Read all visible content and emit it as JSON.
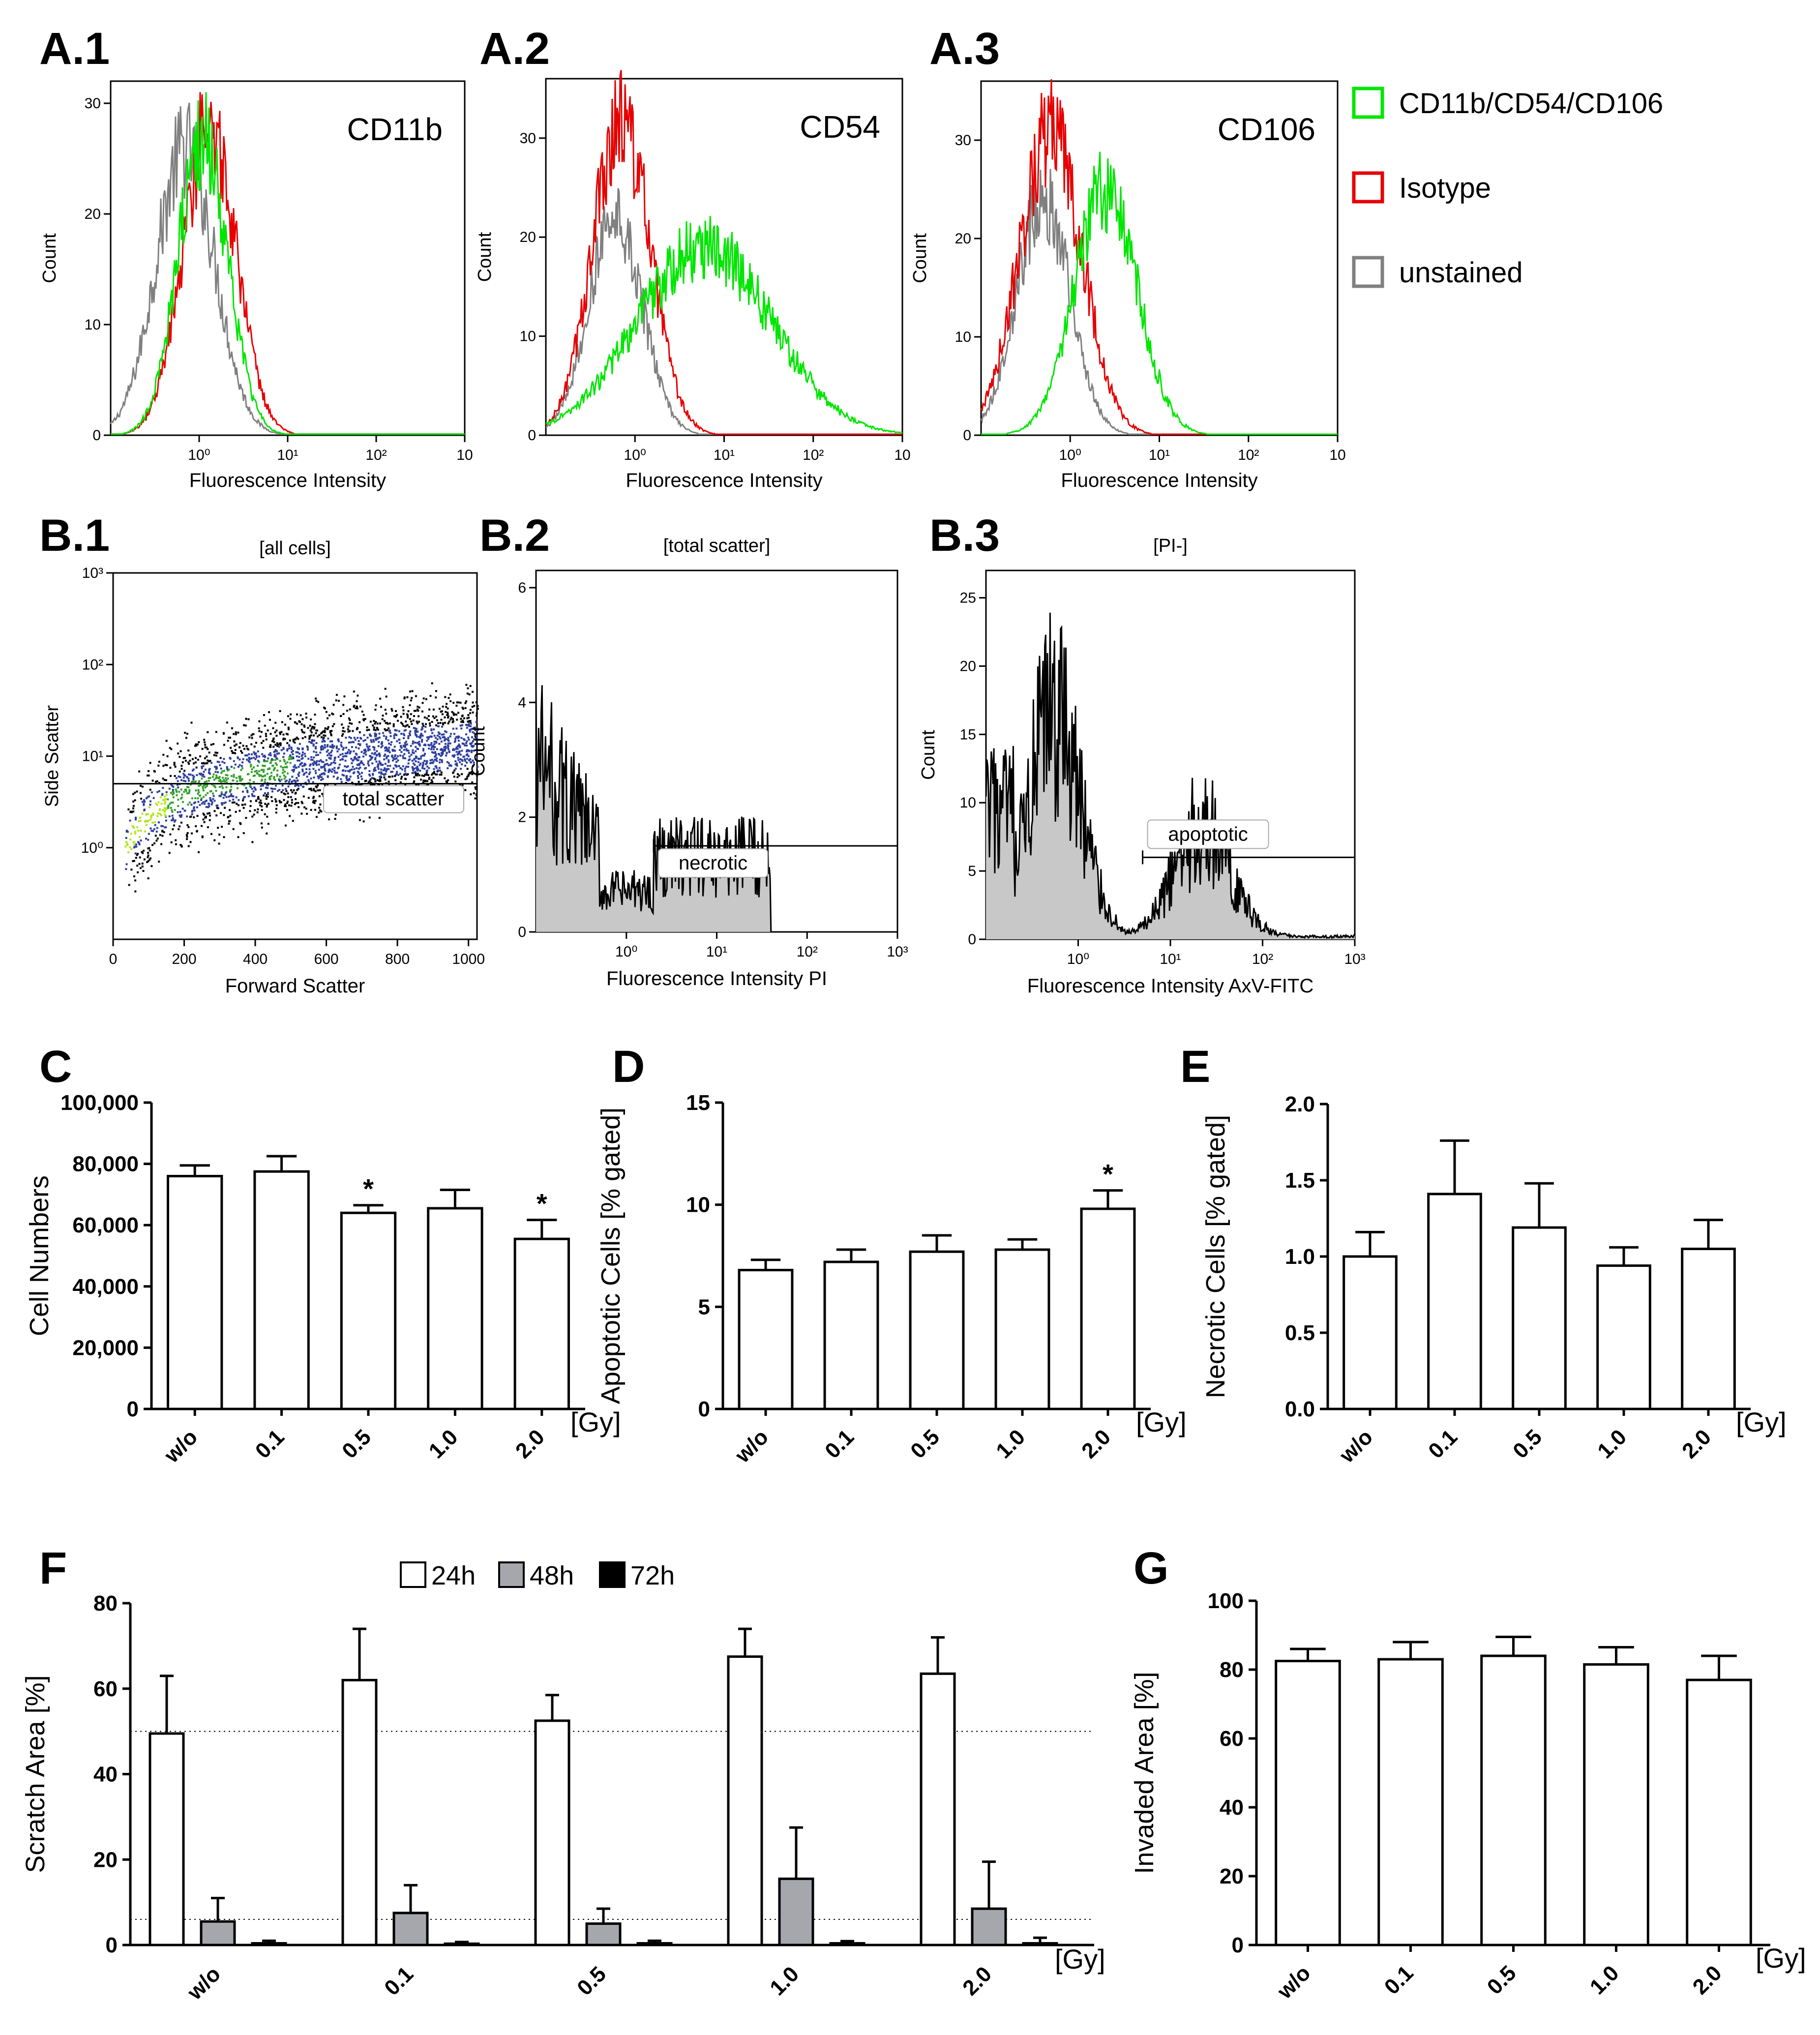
{
  "panel_labels": {
    "A1": "A.1",
    "A2": "A.2",
    "A3": "A.3",
    "B1": "B.1",
    "B2": "B.2",
    "B3": "B.3",
    "C": "C",
    "D": "D",
    "E": "E",
    "F": "F",
    "G": "G"
  },
  "legend_A": [
    {
      "label": "CD11b/CD54/CD106",
      "color": "#00e600"
    },
    {
      "label": "Isotype",
      "color": "#e60000"
    },
    {
      "label": "unstained",
      "color": "#808080"
    }
  ],
  "chart_data": [
    {
      "id": "A1",
      "type": "line",
      "title": "CD11b",
      "xlabel": "Fluorescence Intensity",
      "ylabel": "Count",
      "xscale": "log",
      "xlim": [
        0.1,
        1000
      ],
      "ylim": [
        0,
        32
      ],
      "xticks": [
        {
          "v": 1,
          "label": "10⁰"
        },
        {
          "v": 10,
          "label": "10¹"
        },
        {
          "v": 100,
          "label": "10²"
        },
        {
          "v": 1000,
          "label": "10"
        }
      ],
      "yticks": [
        0,
        10,
        20,
        30
      ],
      "series": [
        {
          "name": "unstained",
          "color": "#808080",
          "peak_x": 0.7,
          "peak_y": 26,
          "log_sd": 0.33
        },
        {
          "name": "Isotype",
          "color": "#e60000",
          "peak_x": 1.3,
          "peak_y": 28,
          "log_sd": 0.3
        },
        {
          "name": "CD11b/CD54/CD106",
          "color": "#00e600",
          "peak_x": 1.1,
          "peak_y": 27,
          "log_sd": 0.28
        }
      ]
    },
    {
      "id": "A2",
      "type": "line",
      "title": "CD54",
      "xlabel": "Fluorescence Intensity",
      "ylabel": "Count",
      "xscale": "log",
      "xlim": [
        0.1,
        1000
      ],
      "ylim": [
        0,
        36
      ],
      "xticks": [
        {
          "v": 1,
          "label": "10⁰"
        },
        {
          "v": 10,
          "label": "10¹"
        },
        {
          "v": 100,
          "label": "10²"
        },
        {
          "v": 1000,
          "label": "10"
        }
      ],
      "yticks": [
        0,
        10,
        20,
        30
      ],
      "series": [
        {
          "name": "unstained",
          "color": "#808080",
          "peak_x": 0.6,
          "peak_y": 22,
          "log_sd": 0.3
        },
        {
          "name": "Isotype",
          "color": "#e60000",
          "peak_x": 0.7,
          "peak_y": 32,
          "log_sd": 0.32
        },
        {
          "name": "CD11b/CD54/CD106",
          "color": "#00e600",
          "peak_x": 6,
          "peak_y": 19,
          "log_sd": 0.75
        }
      ]
    },
    {
      "id": "A3",
      "type": "line",
      "title": "CD106",
      "xlabel": "Fluorescence Intensity",
      "ylabel": "Count",
      "xscale": "log",
      "xlim": [
        0.1,
        1000
      ],
      "ylim": [
        0,
        36
      ],
      "xticks": [
        {
          "v": 1,
          "label": "10⁰"
        },
        {
          "v": 10,
          "label": "10¹"
        },
        {
          "v": 100,
          "label": "10²"
        },
        {
          "v": 1000,
          "label": "10"
        }
      ],
      "yticks": [
        0,
        10,
        20,
        30
      ],
      "series": [
        {
          "name": "unstained",
          "color": "#808080",
          "peak_x": 0.5,
          "peak_y": 24,
          "log_sd": 0.3
        },
        {
          "name": "Isotype",
          "color": "#e60000",
          "peak_x": 0.6,
          "peak_y": 31,
          "log_sd": 0.35
        },
        {
          "name": "CD11b/CD54/CD106",
          "color": "#00e600",
          "peak_x": 2.5,
          "peak_y": 25,
          "log_sd": 0.35
        }
      ]
    },
    {
      "id": "B1",
      "type": "scatter",
      "title": "[all cells]",
      "xlabel": "Forward Scatter",
      "ylabel": "Side Scatter",
      "xlim": [
        0,
        1024
      ],
      "yscale": "log",
      "ylim": [
        0.1,
        1000
      ],
      "xticks": [
        0,
        200,
        400,
        600,
        800,
        1000
      ],
      "yticks": [
        {
          "v": 1,
          "label": "10⁰"
        },
        {
          "v": 10,
          "label": "10¹"
        },
        {
          "v": 100,
          "label": "10²"
        },
        {
          "v": 1000,
          "label": "10³"
        }
      ],
      "gate": {
        "label": "total scatter",
        "y": 5
      }
    },
    {
      "id": "B2",
      "type": "area",
      "title": "[total scatter]",
      "xlabel": "Fluorescence Intensity PI",
      "ylabel": "Count",
      "xscale": "log",
      "xlim": [
        0.1,
        1000
      ],
      "ylim": [
        0,
        6.3
      ],
      "xticks": [
        {
          "v": 1,
          "label": "10⁰"
        },
        {
          "v": 10,
          "label": "10¹"
        },
        {
          "v": 100,
          "label": "10²"
        },
        {
          "v": 1000,
          "label": "10³"
        }
      ],
      "yticks": [
        0,
        2,
        4,
        6
      ],
      "gate": {
        "label": "necrotic",
        "x_from": 2,
        "x_to": 1000,
        "y": 1.5
      }
    },
    {
      "id": "B3",
      "type": "area",
      "title": "[PI-]",
      "xlabel": "Fluorescence Intensity AxV-FITC",
      "ylabel": "Count",
      "xscale": "log",
      "xlim": [
        0.1,
        1000
      ],
      "ylim": [
        0,
        27
      ],
      "xticks": [
        {
          "v": 1,
          "label": "10⁰"
        },
        {
          "v": 10,
          "label": "10¹"
        },
        {
          "v": 100,
          "label": "10²"
        },
        {
          "v": 1000,
          "label": "10³"
        }
      ],
      "yticks": [
        0,
        5,
        10,
        15,
        20,
        25
      ],
      "gate": {
        "label": "apoptotic",
        "x_from": 5,
        "x_to": 1000,
        "y": 6
      }
    },
    {
      "id": "C",
      "type": "bar",
      "ylabel": "Cell Numbers",
      "unit_label": "[Gy]",
      "categories": [
        "w/o",
        "0.1",
        "0.5",
        "1.0",
        "2.0"
      ],
      "values": [
        76000,
        77500,
        64000,
        65500,
        55500
      ],
      "errors": [
        3500,
        5000,
        2500,
        6000,
        6200
      ],
      "significance": [
        "",
        "",
        "*",
        "",
        "*"
      ],
      "ylim": [
        0,
        100000
      ],
      "yticks": [
        {
          "v": 0,
          "label": "0"
        },
        {
          "v": 20000,
          "label": "20,000"
        },
        {
          "v": 40000,
          "label": "40,000"
        },
        {
          "v": 60000,
          "label": "60,000"
        },
        {
          "v": 80000,
          "label": "80,000"
        },
        {
          "v": 100000,
          "label": "100,000"
        }
      ]
    },
    {
      "id": "D",
      "type": "bar",
      "ylabel": "Apoptotic Cells [% gated]",
      "unit_label": "[Gy]",
      "categories": [
        "w/o",
        "0.1",
        "0.5",
        "1.0",
        "2.0"
      ],
      "values": [
        6.8,
        7.2,
        7.7,
        7.8,
        9.8
      ],
      "errors": [
        0.5,
        0.6,
        0.8,
        0.5,
        0.9
      ],
      "significance": [
        "",
        "",
        "",
        "",
        "*"
      ],
      "ylim": [
        0,
        15
      ],
      "yticks": [
        {
          "v": 0,
          "label": "0"
        },
        {
          "v": 5,
          "label": "5"
        },
        {
          "v": 10,
          "label": "10"
        },
        {
          "v": 15,
          "label": "15"
        }
      ]
    },
    {
      "id": "E",
      "type": "bar",
      "ylabel": "Necrotic Cells [% gated]",
      "unit_label": "[Gy]",
      "categories": [
        "w/o",
        "0.1",
        "0.5",
        "1.0",
        "2.0"
      ],
      "values": [
        1.0,
        1.41,
        1.19,
        0.94,
        1.05
      ],
      "errors": [
        0.16,
        0.35,
        0.29,
        0.12,
        0.19
      ],
      "significance": [
        "",
        "",
        "",
        "",
        ""
      ],
      "ylim": [
        0,
        2.0
      ],
      "yticks": [
        {
          "v": 0,
          "label": "0.0"
        },
        {
          "v": 0.5,
          "label": "0.5"
        },
        {
          "v": 1.0,
          "label": "1.0"
        },
        {
          "v": 1.5,
          "label": "1.5"
        },
        {
          "v": 2.0,
          "label": "2.0"
        }
      ]
    },
    {
      "id": "F",
      "type": "bar",
      "ylabel": "Scratch Area [%]",
      "unit_label": "[Gy]",
      "categories": [
        "w/o",
        "0.1",
        "0.5",
        "1.0",
        "2.0"
      ],
      "series": [
        {
          "name": "24h",
          "color": "#ffffff",
          "values": [
            49.5,
            62,
            52.5,
            67.5,
            63.5
          ],
          "errors": [
            13.5,
            12,
            6,
            6.5,
            8.5
          ]
        },
        {
          "name": "48h",
          "color": "#a6a6ad",
          "values": [
            5.5,
            7.5,
            5,
            15.5,
            8.5
          ],
          "errors": [
            5.5,
            6.5,
            3.5,
            12,
            11
          ]
        },
        {
          "name": "72h",
          "color": "#000000",
          "values": [
            0.4,
            0.3,
            0.4,
            0.4,
            0.4
          ],
          "errors": [
            0.6,
            0.4,
            0.6,
            0.5,
            1.3
          ]
        }
      ],
      "ylim": [
        0,
        80
      ],
      "yticks": [
        {
          "v": 0,
          "label": "0"
        },
        {
          "v": 20,
          "label": "20"
        },
        {
          "v": 40,
          "label": "40"
        },
        {
          "v": 60,
          "label": "60"
        },
        {
          "v": 80,
          "label": "80"
        }
      ],
      "reference_lines": [
        50,
        6
      ]
    },
    {
      "id": "G",
      "type": "bar",
      "ylabel": "Invaded Area [%]",
      "unit_label": "[Gy]",
      "categories": [
        "w/o",
        "0.1",
        "0.5",
        "1.0",
        "2.0"
      ],
      "values": [
        82.5,
        83,
        84,
        81.5,
        77
      ],
      "errors": [
        3.5,
        5,
        5.5,
        5,
        7
      ],
      "significance": [
        "",
        "",
        "",
        "",
        ""
      ],
      "ylim": [
        0,
        100
      ],
      "yticks": [
        {
          "v": 0,
          "label": "0"
        },
        {
          "v": 20,
          "label": "20"
        },
        {
          "v": 40,
          "label": "40"
        },
        {
          "v": 60,
          "label": "60"
        },
        {
          "v": 80,
          "label": "80"
        },
        {
          "v": 100,
          "label": "100"
        }
      ]
    }
  ]
}
